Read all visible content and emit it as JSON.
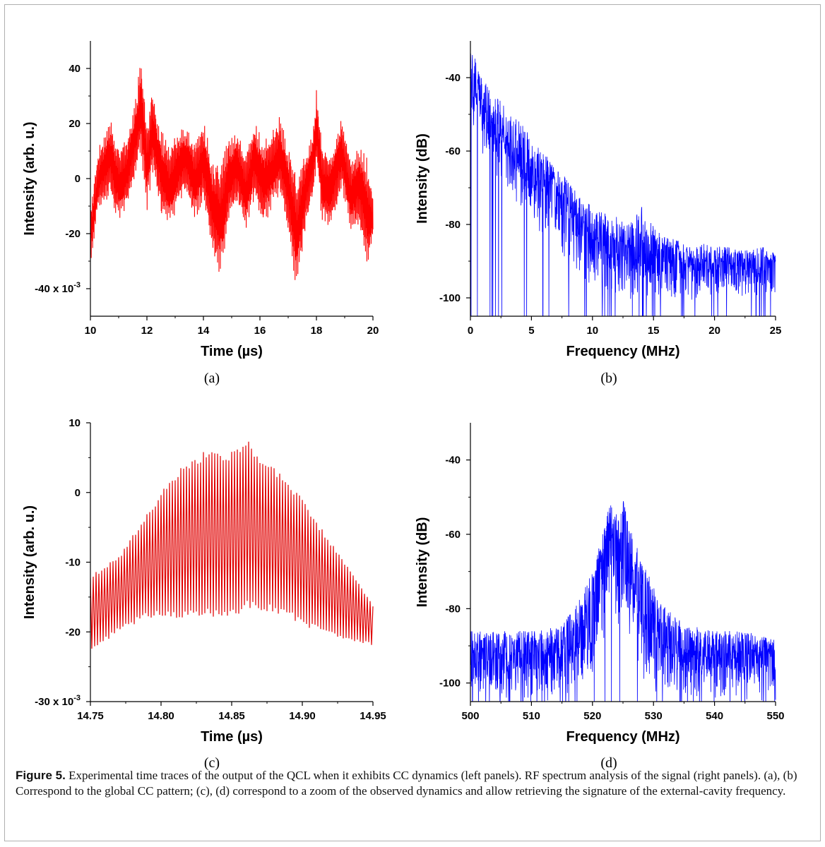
{
  "figure": {
    "caption_label": "Figure 5.",
    "caption_text": " Experimental time traces of the output of the QCL when it exhibits CC dynamics (left panels). RF spectrum analysis of the signal (right panels). (a), (b) Correspond to the global CC pattern; (c), (d) correspond to a zoom of the observed dynamics and allow retrieving the signature of the external-cavity frequency."
  },
  "chart_data": [
    {
      "id": "a",
      "panel_label": "(a)",
      "type": "line",
      "xlabel": "Time (µs)",
      "ylabel": "Intensity (arb. u.)",
      "xlim": [
        10,
        20
      ],
      "ylim": [
        -50,
        50
      ],
      "x_ticks": [
        10,
        12,
        14,
        16,
        18,
        20
      ],
      "x_tick_labels": [
        "10",
        "12",
        "14",
        "16",
        "18",
        "20"
      ],
      "y_ticks": [
        40,
        20,
        0,
        -20,
        -40
      ],
      "y_tick_labels": [
        "40",
        "20",
        "0",
        "-20",
        "-40 x 10"
      ],
      "y_exponent": "-3",
      "color": "#ff0000",
      "series": [
        {
          "x": [
            10.0,
            10.3,
            10.7,
            11.0,
            11.3,
            11.6,
            11.8,
            12.0,
            12.2,
            12.5,
            12.8,
            13.1,
            13.4,
            13.7,
            14.0,
            14.3,
            14.6,
            14.9,
            15.2,
            15.5,
            15.8,
            16.1,
            16.4,
            16.7,
            17.0,
            17.3,
            17.6,
            17.9,
            18.0,
            18.2,
            18.5,
            18.9,
            19.2,
            19.5,
            19.8,
            20.0
          ],
          "y_upper": [
            -10,
            12,
            22,
            12,
            15,
            30,
            45,
            20,
            34,
            18,
            12,
            18,
            20,
            14,
            22,
            8,
            6,
            16,
            18,
            10,
            22,
            14,
            18,
            24,
            12,
            2,
            10,
            20,
            34,
            14,
            10,
            24,
            8,
            12,
            8,
            -6
          ],
          "y_lower": [
            -32,
            -10,
            -8,
            -16,
            -10,
            0,
            8,
            -12,
            2,
            -14,
            -18,
            -10,
            -6,
            -16,
            -8,
            -28,
            -36,
            -16,
            -10,
            -20,
            -8,
            -18,
            -12,
            -6,
            -20,
            -42,
            -20,
            -6,
            4,
            -16,
            -20,
            -4,
            -20,
            -18,
            -34,
            -22
          ]
        }
      ]
    },
    {
      "id": "b",
      "panel_label": "(b)",
      "type": "line",
      "xlabel": "Frequency (MHz)",
      "ylabel": "Intensity (dB)",
      "xlim": [
        0,
        25
      ],
      "ylim": [
        -105,
        -30
      ],
      "x_ticks": [
        0,
        5,
        10,
        15,
        20,
        25
      ],
      "x_tick_labels": [
        "0",
        "5",
        "10",
        "15",
        "20",
        "25"
      ],
      "y_ticks": [
        -40,
        -60,
        -80,
        -100
      ],
      "y_tick_labels": [
        "-40",
        "-60",
        "-80",
        "-100"
      ],
      "color": "#0000ff",
      "series": [
        {
          "x": [
            0,
            1,
            2,
            3,
            4,
            5,
            6,
            7,
            8,
            9,
            10,
            11,
            12,
            13,
            14,
            15,
            16,
            17,
            18,
            19,
            20,
            21,
            22,
            23,
            24,
            25
          ],
          "y_upper": [
            -30,
            -40,
            -45,
            -48,
            -52,
            -56,
            -60,
            -64,
            -68,
            -72,
            -75,
            -76,
            -78,
            -80,
            -75,
            -80,
            -83,
            -84,
            -86,
            -85,
            -86,
            -86,
            -87,
            -87,
            -86,
            -88
          ],
          "y_lower": [
            -52,
            -62,
            -68,
            -72,
            -76,
            -80,
            -84,
            -88,
            -92,
            -96,
            -98,
            -100,
            -100,
            -101,
            -101,
            -101,
            -101,
            -101,
            -101,
            -101,
            -101,
            -101,
            -101,
            -101,
            -101,
            -100
          ]
        }
      ]
    },
    {
      "id": "c",
      "panel_label": "(c)",
      "type": "line",
      "xlabel": "Time (µs)",
      "ylabel": "Intensity (arb. u.)",
      "xlim": [
        14.75,
        14.95
      ],
      "ylim": [
        -30,
        10
      ],
      "x_ticks": [
        14.75,
        14.8,
        14.85,
        14.9,
        14.95
      ],
      "x_tick_labels": [
        "14.75",
        "14.80",
        "14.85",
        "14.90",
        "14.95"
      ],
      "y_ticks": [
        10,
        0,
        -10,
        -20,
        -30
      ],
      "y_tick_labels": [
        "10",
        "0",
        "-10",
        "-20",
        "-30 x 10"
      ],
      "y_exponent": "-3",
      "color": "#e00000",
      "series": [
        {
          "x": [
            14.75,
            14.77,
            14.79,
            14.81,
            14.83,
            14.85,
            14.86,
            14.87,
            14.89,
            14.91,
            14.93,
            14.95
          ],
          "y_upper": [
            -12,
            -9,
            -3,
            3,
            6,
            6,
            8,
            5,
            2,
            -4,
            -10,
            -16
          ],
          "y_lower": [
            -23,
            -20,
            -18,
            -18,
            -18,
            -18,
            -17,
            -17,
            -18,
            -20,
            -21,
            -22
          ]
        }
      ]
    },
    {
      "id": "d",
      "panel_label": "(d)",
      "type": "line",
      "xlabel": "Frequency (MHz)",
      "ylabel": "Intensity (dB)",
      "xlim": [
        500,
        550
      ],
      "ylim": [
        -105,
        -30
      ],
      "x_ticks": [
        500,
        510,
        520,
        530,
        540,
        550
      ],
      "x_tick_labels": [
        "500",
        "510",
        "520",
        "530",
        "540",
        "550"
      ],
      "y_ticks": [
        -40,
        -60,
        -80,
        -100
      ],
      "y_tick_labels": [
        "-40",
        "-60",
        "-80",
        "-100"
      ],
      "color": "#0000ff",
      "series": [
        {
          "x": [
            500,
            505,
            510,
            514,
            517,
            520,
            522,
            523,
            524,
            525,
            526,
            528,
            531,
            535,
            540,
            545,
            550
          ],
          "y_upper": [
            -86,
            -86,
            -86,
            -85,
            -80,
            -70,
            -58,
            -50,
            -55,
            -50,
            -58,
            -66,
            -78,
            -84,
            -86,
            -86,
            -88
          ],
          "y_lower": [
            -105,
            -105,
            -105,
            -105,
            -105,
            -100,
            -90,
            -80,
            -88,
            -82,
            -90,
            -100,
            -105,
            -105,
            -105,
            -105,
            -105
          ]
        }
      ]
    }
  ]
}
